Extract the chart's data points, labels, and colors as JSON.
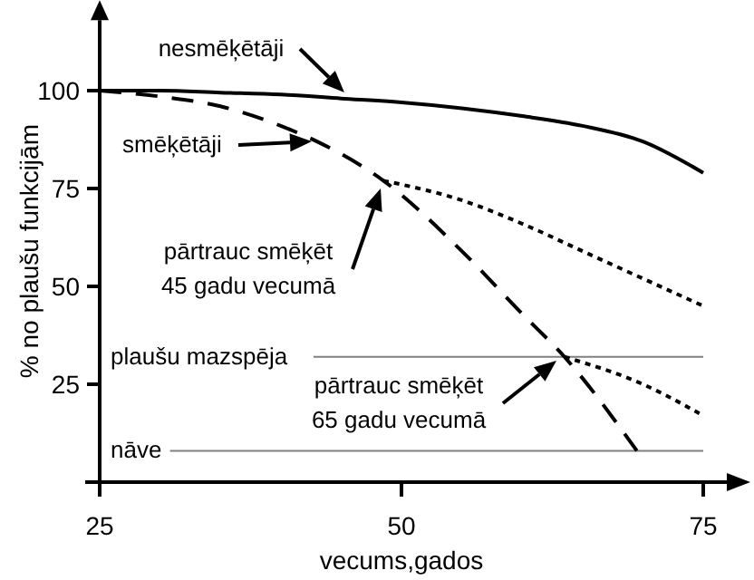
{
  "chart_data": {
    "type": "line",
    "xlabel": "vecums,gados",
    "ylabel": "% no plaušu funkcijām",
    "xlim": [
      25,
      75
    ],
    "ylim": [
      0,
      118
    ],
    "xticks": [
      25,
      50,
      75
    ],
    "yticks": [
      25,
      50,
      75,
      100
    ],
    "grid": false,
    "series": [
      {
        "color": "#000000",
        "line_style": "solid",
        "x": [
          25,
          30,
          35,
          40,
          45,
          50,
          55,
          60,
          65,
          70,
          75
        ],
        "values": [
          100,
          100,
          99.5,
          99,
          98,
          97,
          95.5,
          93.5,
          91,
          87,
          79
        ]
      },
      {
        "color": "#000000",
        "line_style": "dashed",
        "x": [
          25,
          30,
          35,
          40,
          43,
          48.5,
          55,
          60,
          63.5,
          69.5
        ],
        "values": [
          100,
          98.5,
          96,
          91,
          87,
          77,
          59,
          43,
          32,
          8
        ]
      },
      {
        "color": "#000000",
        "line_style": "dotted",
        "x": [
          48.5,
          55,
          60,
          65,
          70,
          75
        ],
        "values": [
          77,
          72,
          66,
          59,
          52,
          45
        ]
      },
      {
        "color": "#000000",
        "line_style": "dotted",
        "x": [
          63.5,
          70,
          75
        ],
        "values": [
          32,
          25,
          17
        ]
      }
    ],
    "ref_lines": [
      {
        "axis": "y",
        "value": 32,
        "label": "plaušu mazspēja",
        "color": "#808080"
      },
      {
        "axis": "y",
        "value": 8,
        "label": "nāve",
        "color": "#808080"
      }
    ],
    "annotations": [
      "nesmēķētāji",
      "smēķētāji",
      "pārtrauc smēķēt\n45 gadu vecumā",
      "pārtrauc smēķēt\n65 gadu vecumā"
    ]
  }
}
